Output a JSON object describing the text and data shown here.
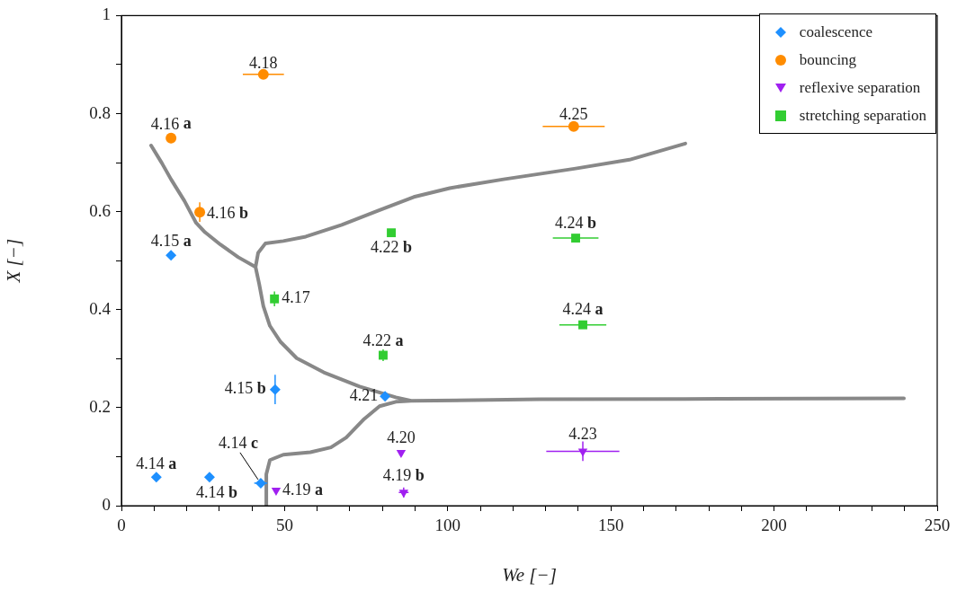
{
  "chart_data": {
    "type": "scatter",
    "xlabel": "We [−]",
    "ylabel": "X [−]",
    "xlim": [
      0,
      250
    ],
    "ylim": [
      0,
      1
    ],
    "xticks": [
      0,
      {
        "value": 10,
        "label": null
      },
      {
        "value": 20,
        "label": null
      },
      {
        "value": 30,
        "label": null
      },
      {
        "value": 40,
        "label": null
      },
      50,
      {
        "value": 60,
        "label": null
      },
      {
        "value": 70,
        "label": null
      },
      {
        "value": 80,
        "label": null
      },
      {
        "value": 90,
        "label": null
      },
      100,
      {
        "value": 110,
        "label": null
      },
      {
        "value": 120,
        "label": null
      },
      {
        "value": 130,
        "label": null
      },
      {
        "value": 140,
        "label": null
      },
      150,
      {
        "value": 160,
        "label": null
      },
      {
        "value": 170,
        "label": null
      },
      {
        "value": 180,
        "label": null
      },
      {
        "value": 190,
        "label": null
      },
      200,
      {
        "value": 210,
        "label": null
      },
      {
        "value": 220,
        "label": null
      },
      {
        "value": 230,
        "label": null
      },
      {
        "value": 240,
        "label": null
      },
      250
    ],
    "yticks": [
      0,
      {
        "value": 0.1,
        "label": null
      },
      0.2,
      {
        "value": 0.3,
        "label": null
      },
      0.4,
      {
        "value": 0.5,
        "label": null
      },
      0.6,
      {
        "value": 0.7,
        "label": null
      },
      0.8,
      {
        "value": 0.9,
        "label": null
      },
      1
    ],
    "grid": false,
    "legend": "top right",
    "series": [
      {
        "name": "coalescence",
        "marker": "diamond",
        "color": "#1e90ff",
        "x": [
          10.7,
          27.0,
          42.7,
          15.2,
          47.1,
          80.8
        ],
        "values": [
          0.058,
          0.058,
          0.046,
          0.511,
          0.237,
          0.223
        ],
        "xerrors": [
          null,
          1,
          2,
          null,
          null,
          null
        ],
        "errors": [
          null,
          null,
          0.008,
          null,
          0.03,
          null
        ]
      },
      {
        "name": "bouncing",
        "marker": "circle",
        "color": "#ff8c00",
        "x": [
          43.5,
          15.2,
          24.0,
          138.6
        ],
        "values": [
          0.88,
          0.75,
          0.599,
          0.774
        ],
        "xerrors": [
          6.3,
          null,
          null,
          9.5
        ],
        "errors": [
          null,
          0.01,
          0.02,
          null
        ]
      },
      {
        "name": "reflexive separation",
        "marker": "triangle",
        "color": "#a020f0",
        "x": [
          47.4,
          85.7,
          86.5,
          141.4
        ],
        "values": [
          0.031,
          0.108,
          0.027,
          0.111
        ],
        "xerrors": [
          null,
          null,
          1.5,
          11.2
        ],
        "errors": [
          null,
          null,
          0.01,
          0.02
        ]
      },
      {
        "name": "stretching separation",
        "marker": "square",
        "color": "#32cd32",
        "x": [
          46.9,
          82.7,
          80.2,
          139.2,
          141.4
        ],
        "values": [
          0.422,
          0.557,
          0.307,
          0.546,
          0.369
        ],
        "xerrors": [
          null,
          null,
          null,
          7,
          7.2
        ],
        "errors": [
          0.015,
          null,
          0.012,
          null,
          null
        ]
      },
      {
        "type": "line",
        "marker": "none",
        "color": "#888888",
        "x": [
          9.1,
          12.4,
          15.2,
          19.3,
          22.9,
          25.6,
          30.3,
          35.8,
          41.1,
          42.2,
          43.5,
          45.5,
          48.8,
          53.7,
          62.0,
          73.0,
          84.1,
          88.8,
          128.2,
          183.3,
          239.8,
          null,
          41.1,
          41.9,
          44.1,
          49.6,
          56.5,
          67.5,
          78.6,
          89.6,
          100.6,
          117.1,
          139.2,
          155.7,
          172.8,
          null,
          44.4,
          44.4,
          45.5,
          49.6,
          57.9,
          64.2,
          68.9,
          74.4,
          79.1,
          84.1,
          88.8
        ],
        "values": [
          0.735,
          0.699,
          0.666,
          0.622,
          0.577,
          0.558,
          0.533,
          0.507,
          0.487,
          0.453,
          0.407,
          0.367,
          0.334,
          0.301,
          0.272,
          0.243,
          0.221,
          0.214,
          0.217,
          0.218,
          0.219,
          null,
          0.487,
          0.516,
          0.535,
          0.54,
          0.549,
          0.573,
          0.602,
          0.63,
          0.648,
          0.666,
          0.688,
          0.706,
          0.739,
          null,
          0,
          0.064,
          0.093,
          0.104,
          0.109,
          0.119,
          0.139,
          0.177,
          0.203,
          0.212,
          0.214
        ]
      }
    ],
    "annotations": [
      {
        "text": "4.14 a",
        "x": 10.7,
        "y": 0.058
      },
      {
        "text": "4.14 b",
        "x": 27.0,
        "y": 0.058
      },
      {
        "text": "4.14 c",
        "x": 42.7,
        "y": 0.046
      },
      {
        "text": "4.15 a",
        "x": 15.2,
        "y": 0.511
      },
      {
        "text": "4.15 b",
        "x": 47.1,
        "y": 0.237
      },
      {
        "text": "4.21",
        "x": 80.8,
        "y": 0.223
      },
      {
        "text": "4.18",
        "x": 43.5,
        "y": 0.88
      },
      {
        "text": "4.16 a",
        "x": 15.2,
        "y": 0.75
      },
      {
        "text": "4.16 b",
        "x": 24.0,
        "y": 0.599
      },
      {
        "text": "4.25",
        "x": 138.6,
        "y": 0.774
      },
      {
        "text": "4.19 a",
        "x": 47.4,
        "y": 0.031
      },
      {
        "text": "4.20",
        "x": 85.7,
        "y": 0.108
      },
      {
        "text": "4.19 b",
        "x": 86.5,
        "y": 0.027
      },
      {
        "text": "4.23",
        "x": 141.4,
        "y": 0.111
      },
      {
        "text": "4.17",
        "x": 46.9,
        "y": 0.422
      },
      {
        "text": "4.22 b",
        "x": 82.7,
        "y": 0.557
      },
      {
        "text": "4.22 a",
        "x": 80.2,
        "y": 0.307
      },
      {
        "text": "4.24 b",
        "x": 139.2,
        "y": 0.546
      },
      {
        "text": "4.24 a",
        "x": 141.4,
        "y": 0.369
      }
    ]
  }
}
